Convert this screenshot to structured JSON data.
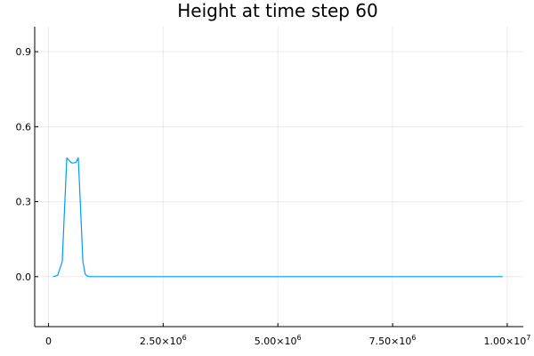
{
  "chart_data": {
    "type": "line",
    "title": "Height at time step 60",
    "xlabel": "",
    "ylabel": "",
    "xlim": [
      -300000,
      10350000
    ],
    "ylim": [
      -0.2,
      1.0
    ],
    "xticks": [
      {
        "value": 0,
        "label": "0"
      },
      {
        "value": 2500000,
        "label": "2.50×10",
        "exp": "6"
      },
      {
        "value": 5000000,
        "label": "5.00×10",
        "exp": "6"
      },
      {
        "value": 7500000,
        "label": "7.50×10",
        "exp": "6"
      },
      {
        "value": 10000000,
        "label": "1.00×10",
        "exp": "7"
      }
    ],
    "yticks": [
      {
        "value": 0.0,
        "label": "0.0"
      },
      {
        "value": 0.3,
        "label": "0.3"
      },
      {
        "value": 0.6,
        "label": "0.6"
      },
      {
        "value": 0.9,
        "label": "0.9"
      }
    ],
    "grid": true,
    "legend": "none",
    "series": [
      {
        "color": "#009AFA",
        "x": [
          100000,
          200000,
          300000,
          350000,
          400000,
          450000,
          500000,
          550000,
          600000,
          650000,
          700000,
          750000,
          800000,
          850000,
          900000,
          1000000,
          1100000,
          1200000,
          1500000,
          2000000,
          3000000,
          4000000,
          5000000,
          6000000,
          7000000,
          8000000,
          9000000,
          9900000
        ],
        "y": [
          0.0,
          0.005,
          0.06,
          0.27,
          0.475,
          0.465,
          0.455,
          0.455,
          0.457,
          0.475,
          0.27,
          0.06,
          0.01,
          0.002,
          0.0,
          0.0,
          0.0,
          0.0,
          0.0,
          0.0,
          0.0,
          0.0,
          0.0,
          0.0,
          0.0,
          0.0,
          0.0,
          0.0
        ]
      }
    ]
  }
}
